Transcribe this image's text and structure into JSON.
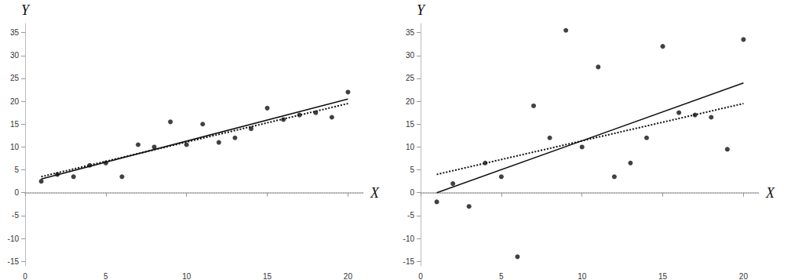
{
  "chart_data": [
    {
      "type": "scatter",
      "x_label": "X",
      "y_label": "Y",
      "xlim": [
        0,
        21
      ],
      "xticks": [
        0,
        5,
        10,
        15,
        20
      ],
      "ylim": [
        -16,
        37
      ],
      "yticks": [
        -15,
        -10,
        -5,
        0,
        5,
        10,
        15,
        20,
        25,
        30,
        35
      ],
      "grid": false,
      "series": [
        {
          "type": "scatter",
          "color": "#111111",
          "marker": "circle",
          "x": [
            1,
            2,
            3,
            4,
            5,
            6,
            7,
            8,
            9,
            10,
            11,
            12,
            13,
            14,
            15,
            16,
            17,
            18,
            19,
            20
          ],
          "values": [
            2.5,
            4,
            3.5,
            6,
            6.5,
            3.5,
            10.5,
            10,
            15.5,
            10.5,
            15,
            11,
            12,
            14,
            18.5,
            16,
            17,
            17.5,
            16.5,
            22
          ]
        },
        {
          "type": "line",
          "color": "#111111",
          "line_style": "solid",
          "x": [
            1,
            20
          ],
          "values": [
            3,
            20.5
          ]
        },
        {
          "type": "line",
          "color": "#111111",
          "line_style": "dotted",
          "x": [
            1,
            20
          ],
          "values": [
            3.5,
            19.5
          ]
        }
      ]
    },
    {
      "type": "scatter",
      "x_label": "X",
      "y_label": "Y",
      "xlim": [
        0,
        21
      ],
      "xticks": [
        0,
        5,
        10,
        15,
        20
      ],
      "ylim": [
        -16,
        37
      ],
      "yticks": [
        -15,
        -10,
        -5,
        0,
        5,
        10,
        15,
        20,
        25,
        30,
        35
      ],
      "grid": false,
      "series": [
        {
          "type": "scatter",
          "color": "#111111",
          "marker": "circle",
          "x": [
            1,
            2,
            3,
            4,
            5,
            6,
            7,
            8,
            9,
            10,
            11,
            12,
            13,
            14,
            15,
            16,
            17,
            18,
            19,
            20
          ],
          "values": [
            -2,
            2,
            -3,
            6.5,
            3.5,
            -14,
            19,
            12,
            35.5,
            10,
            27.5,
            3.5,
            6.5,
            12,
            32,
            17.5,
            17,
            16.5,
            9.5,
            33.5
          ]
        },
        {
          "type": "line",
          "color": "#111111",
          "line_style": "solid",
          "x": [
            1,
            20
          ],
          "values": [
            0,
            24
          ]
        },
        {
          "type": "line",
          "color": "#111111",
          "line_style": "dotted",
          "x": [
            1,
            20
          ],
          "values": [
            4,
            19.5
          ]
        }
      ]
    }
  ]
}
